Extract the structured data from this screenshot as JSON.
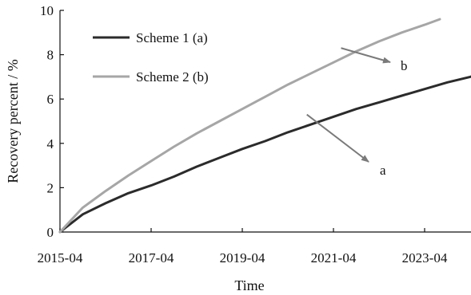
{
  "chart_data": {
    "type": "line",
    "title": "",
    "xlabel": "Time",
    "ylabel": "Recovery percent / %",
    "x_ticks": [
      "2015-04",
      "2017-04",
      "2019-04",
      "2021-04",
      "2023-04"
    ],
    "xlim": [
      "2015-04",
      "2024-08"
    ],
    "y_ticks": [
      0,
      2,
      4,
      6,
      8,
      10
    ],
    "ylim": [
      0,
      10
    ],
    "grid": false,
    "legend_position": "top-left",
    "series": [
      {
        "name": "Scheme 1 (a)",
        "color": "#2b2b2b",
        "x": [
          "2015-04",
          "2015-10",
          "2016-04",
          "2016-10",
          "2017-04",
          "2017-10",
          "2018-04",
          "2018-10",
          "2019-04",
          "2019-10",
          "2020-04",
          "2020-10",
          "2021-04",
          "2021-10",
          "2022-04",
          "2022-10",
          "2023-04",
          "2023-10",
          "2024-04",
          "2024-08"
        ],
        "values": [
          0,
          0.8,
          1.3,
          1.75,
          2.1,
          2.5,
          2.95,
          3.35,
          3.75,
          4.1,
          4.5,
          4.85,
          5.2,
          5.55,
          5.85,
          6.15,
          6.45,
          6.75,
          7.0,
          7.2
        ]
      },
      {
        "name": "Scheme 2 (b)",
        "color": "#a6a6a6",
        "x": [
          "2015-04",
          "2015-10",
          "2016-04",
          "2016-10",
          "2017-04",
          "2017-10",
          "2018-04",
          "2018-10",
          "2019-04",
          "2019-10",
          "2020-04",
          "2020-10",
          "2021-04",
          "2021-10",
          "2022-04",
          "2022-10",
          "2023-04",
          "2023-08"
        ],
        "values": [
          0,
          1.1,
          1.85,
          2.55,
          3.2,
          3.85,
          4.45,
          5.0,
          5.55,
          6.1,
          6.65,
          7.15,
          7.65,
          8.15,
          8.6,
          9.0,
          9.35,
          9.6
        ]
      }
    ],
    "annotations": [
      {
        "text": "a",
        "points_to_series": "Scheme 1 (a)",
        "arrow_from": {
          "x": "2020-09",
          "y": 5.3
        }
      },
      {
        "text": "b",
        "points_to_series": "Scheme 2 (b)",
        "arrow_from": {
          "x": "2021-06",
          "y": 8.3
        }
      }
    ]
  }
}
